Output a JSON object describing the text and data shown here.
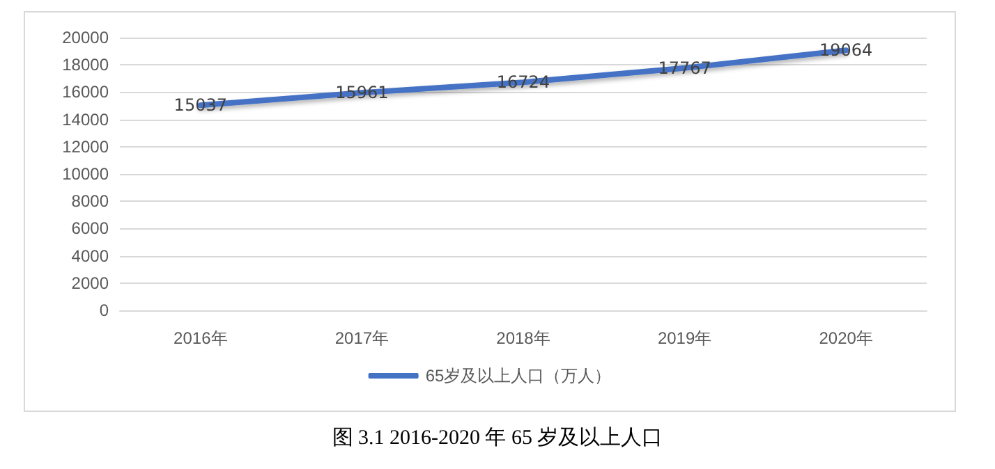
{
  "chart_data": {
    "type": "line",
    "categories": [
      "2016年",
      "2017年",
      "2018年",
      "2019年",
      "2020年"
    ],
    "series": [
      {
        "name": "65岁及以上人口（万人）",
        "color": "#4472c4",
        "values": [
          15037,
          15961,
          16724,
          17767,
          19064
        ]
      }
    ],
    "ylim": [
      0,
      20000
    ],
    "yticks": [
      0,
      2000,
      4000,
      6000,
      8000,
      10000,
      12000,
      14000,
      16000,
      18000,
      20000
    ],
    "grid": "y",
    "legend": "bottom",
    "data_labels": true,
    "marker": "none",
    "line_style": "solid",
    "annotations": [
      "图 3.1 2016-2020 年 65 岁及以上人口"
    ]
  }
}
